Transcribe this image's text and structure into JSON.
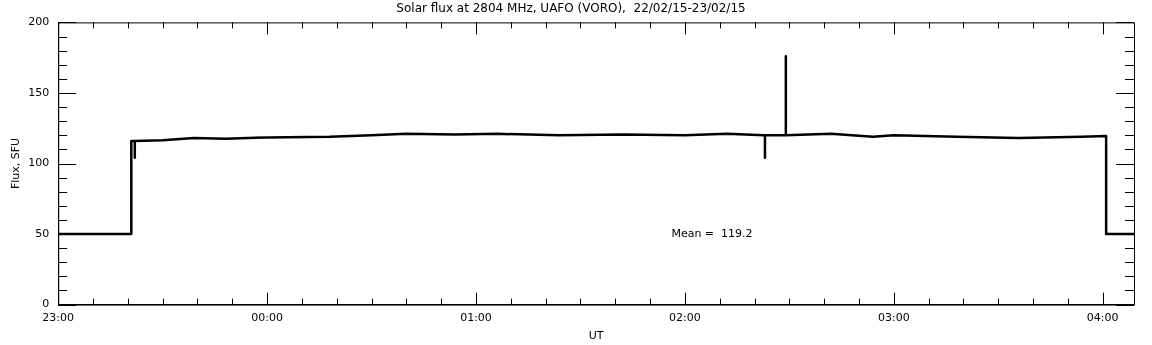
{
  "chart_data": {
    "type": "line",
    "title": "Solar flux at 2804 MHz, UAFO (VORO),  22/02/15-23/02/15",
    "xlabel": "UT",
    "ylabel": "Flux, SFU",
    "annotations": [
      "Mean =  119.2"
    ],
    "series": [
      {
        "color": "#000000",
        "x": [
          "--02-22T23:00",
          "--02-22T23:21",
          "--02-22T23:21",
          "--02-22T23:22",
          "--02-22T23:22",
          "--02-22T23:22",
          "--02-22T23:30",
          "--02-22T23:39",
          "--02-22T23:48",
          "--02-23T00:00",
          "--02-23T00:18",
          "--02-23T00:30",
          "--02-23T00:40",
          "--02-23T00:54",
          "--02-23T01:06",
          "--02-23T01:24",
          "--02-23T01:42",
          "--02-23T02:00",
          "--02-23T02:12",
          "--02-23T02:23",
          "--02-23T02:23",
          "--02-23T02:23",
          "--02-23T02:29",
          "--02-23T02:29",
          "--02-23T02:29",
          "--02-23T02:42",
          "--02-23T02:54",
          "--02-23T03:00",
          "--02-23T03:18",
          "--02-23T03:36",
          "--02-23T03:54",
          "--02-23T04:01",
          "--02-23T04:01",
          "--02-23T04:09"
        ],
        "values": [
          50,
          50,
          116,
          116,
          104,
          116,
          116.5,
          118,
          117.5,
          118.5,
          119,
          120,
          121,
          120.5,
          121,
          120,
          120.5,
          120,
          121,
          120,
          104,
          120,
          120,
          176,
          120,
          121,
          119,
          120,
          119,
          118,
          119,
          119.5,
          50,
          50
        ]
      }
    ],
    "xlim": [
      "--02-22T23:00",
      "--02-23T04:09"
    ],
    "xticks": [
      {
        "value": "--02-22T23:00",
        "label": "23:00"
      },
      {
        "value": "--02-22T23:10",
        "label": null
      },
      {
        "value": "--02-22T23:20",
        "label": null
      },
      {
        "value": "--02-22T23:30",
        "label": null
      },
      {
        "value": "--02-22T23:40",
        "label": null
      },
      {
        "value": "--02-22T23:50",
        "label": null
      },
      {
        "value": "--02-23T00:00",
        "label": "00:00"
      },
      {
        "value": "--02-23T00:10",
        "label": null
      },
      {
        "value": "--02-23T00:20",
        "label": null
      },
      {
        "value": "--02-23T00:30",
        "label": null
      },
      {
        "value": "--02-23T00:40",
        "label": null
      },
      {
        "value": "--02-23T00:50",
        "label": null
      },
      {
        "value": "--02-23T01:00",
        "label": "01:00"
      },
      {
        "value": "--02-23T01:10",
        "label": null
      },
      {
        "value": "--02-23T01:20",
        "label": null
      },
      {
        "value": "--02-23T01:30",
        "label": null
      },
      {
        "value": "--02-23T01:40",
        "label": null
      },
      {
        "value": "--02-23T01:50",
        "label": null
      },
      {
        "value": "--02-23T02:00",
        "label": "02:00"
      },
      {
        "value": "--02-23T02:10",
        "label": null
      },
      {
        "value": "--02-23T02:20",
        "label": null
      },
      {
        "value": "--02-23T02:30",
        "label": null
      },
      {
        "value": "--02-23T02:40",
        "label": null
      },
      {
        "value": "--02-23T02:50",
        "label": null
      },
      {
        "value": "--02-23T03:00",
        "label": "03:00"
      },
      {
        "value": "--02-23T03:10",
        "label": null
      },
      {
        "value": "--02-23T03:20",
        "label": null
      },
      {
        "value": "--02-23T03:30",
        "label": null
      },
      {
        "value": "--02-23T03:40",
        "label": null
      },
      {
        "value": "--02-23T03:50",
        "label": null
      },
      {
        "value": "--02-23T04:00",
        "label": "04:00"
      }
    ],
    "ylim": [
      0,
      200
    ],
    "yticks": [
      0,
      {
        "value": 10,
        "label": null
      },
      {
        "value": 20,
        "label": null
      },
      {
        "value": 30,
        "label": null
      },
      {
        "value": 40,
        "label": null
      },
      50,
      {
        "value": 60,
        "label": null
      },
      {
        "value": 70,
        "label": null
      },
      {
        "value": 80,
        "label": null
      },
      {
        "value": 90,
        "label": null
      },
      100,
      {
        "value": 110,
        "label": null
      },
      {
        "value": 120,
        "label": null
      },
      {
        "value": 130,
        "label": null
      },
      {
        "value": 140,
        "label": null
      },
      150,
      {
        "value": 160,
        "label": null
      },
      {
        "value": 170,
        "label": null
      },
      {
        "value": 180,
        "label": null
      },
      {
        "value": 190,
        "label": null
      },
      200
    ],
    "marker": "none",
    "line_style": "solid"
  }
}
